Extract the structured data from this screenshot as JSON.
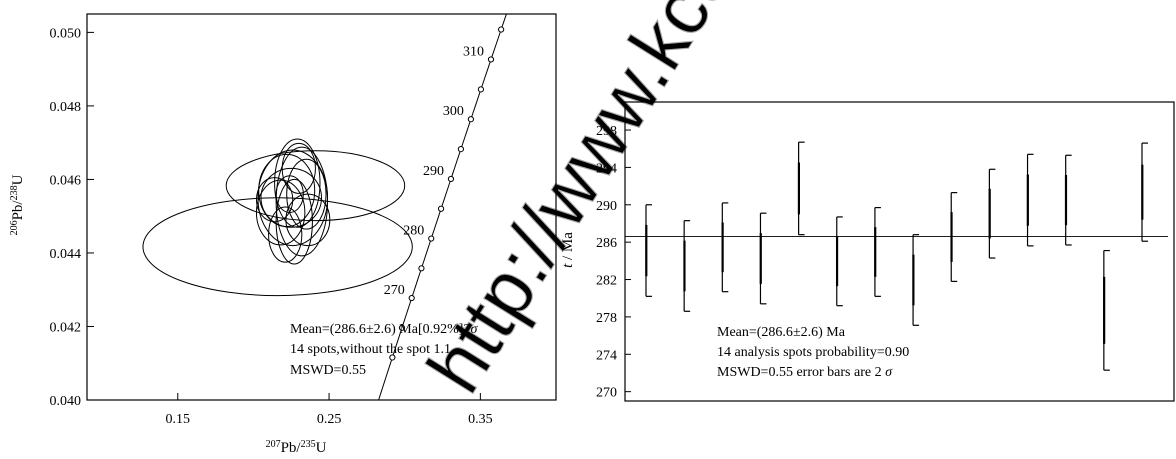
{
  "watermark": "http://www.kcdz.ac.cn",
  "chart_data": [
    {
      "type": "scatter",
      "subtype": "concordia-diagram",
      "title": "",
      "xlabel": {
        "sup1": "207",
        "base1": "Pb/",
        "sup2": "235",
        "base2": "U"
      },
      "ylabel": {
        "sup1": "206",
        "base1": "Pb/",
        "sup2": "238",
        "base2": "U"
      },
      "xlim": [
        0.09,
        0.4
      ],
      "ylim": [
        0.04,
        0.0505
      ],
      "xticks": [
        {
          "value": 0.15,
          "label": "0.15"
        },
        {
          "value": 0.25,
          "label": "0.25"
        },
        {
          "value": 0.35,
          "label": "0.35"
        }
      ],
      "yticks": [
        {
          "value": 0.04,
          "label": "0.040"
        },
        {
          "value": 0.042,
          "label": "0.042"
        },
        {
          "value": 0.044,
          "label": "0.044"
        },
        {
          "value": 0.046,
          "label": "0.046"
        },
        {
          "value": 0.048,
          "label": "0.048"
        },
        {
          "value": 0.05,
          "label": "0.050"
        }
      ],
      "concordia_ages_ma": [
        260,
        265,
        270,
        275,
        280,
        285,
        290,
        295,
        300,
        305,
        310,
        315
      ],
      "age_labels": [
        {
          "age": 270,
          "label": "270"
        },
        {
          "age": 280,
          "label": "280"
        },
        {
          "age": 290,
          "label": "290"
        },
        {
          "age": 300,
          "label": "300"
        },
        {
          "age": 310,
          "label": "310"
        }
      ],
      "error_ellipses": [
        {
          "cx": 0.216,
          "cy": 0.04417,
          "rx": 0.089,
          "ry": 0.00133,
          "angle": 0
        },
        {
          "cx": 0.241,
          "cy": 0.04583,
          "rx": 0.059,
          "ry": 0.00095,
          "angle": 0
        },
        {
          "cx": 0.226,
          "cy": 0.0455,
          "rx": 0.023,
          "ry": 0.0013,
          "angle": 0
        },
        {
          "cx": 0.232,
          "cy": 0.0454,
          "rx": 0.017,
          "ry": 0.00148,
          "angle": 0
        },
        {
          "cx": 0.222,
          "cy": 0.0457,
          "rx": 0.0185,
          "ry": 0.00098,
          "angle": 0
        },
        {
          "cx": 0.235,
          "cy": 0.0456,
          "rx": 0.013,
          "ry": 0.00095,
          "angle": 0
        },
        {
          "cx": 0.23,
          "cy": 0.0463,
          "rx": 0.011,
          "ry": 0.00068,
          "angle": 0
        },
        {
          "cx": 0.218,
          "cy": 0.0451,
          "rx": 0.016,
          "ry": 0.00088,
          "angle": 0
        },
        {
          "cx": 0.227,
          "cy": 0.04485,
          "rx": 0.012,
          "ry": 0.00115,
          "angle": 0
        },
        {
          "cx": 0.225,
          "cy": 0.0455,
          "rx": 0.02,
          "ry": 0.0008,
          "angle": 0
        },
        {
          "cx": 0.214,
          "cy": 0.04545,
          "rx": 0.012,
          "ry": 0.0006,
          "angle": 0
        },
        {
          "cx": 0.221,
          "cy": 0.0445,
          "rx": 0.011,
          "ry": 0.00075,
          "angle": 0
        },
        {
          "cx": 0.236,
          "cy": 0.0449,
          "rx": 0.0145,
          "ry": 0.0007,
          "angle": 0
        },
        {
          "cx": 0.224,
          "cy": 0.0456,
          "rx": 0.009,
          "ry": 0.0005,
          "angle": 0
        },
        {
          "cx": 0.229,
          "cy": 0.0459,
          "rx": 0.015,
          "ry": 0.0012,
          "angle": 0
        }
      ],
      "annotation_lines": [
        {
          "pre": "Mean=(286.6",
          "pm": "±",
          "post": "2.6) Ma[0.92%]2",
          "sigma": "σ"
        },
        {
          "pre": "14 spots,without the spot 1.1"
        },
        {
          "pre": "MSWD=0.55"
        }
      ]
    },
    {
      "type": "bar",
      "subtype": "weighted-mean-error-bars",
      "title": "",
      "xlabel": "",
      "ylabel": {
        "italic": "t",
        "rest": " / Ma"
      },
      "ylim": [
        269,
        301
      ],
      "yticks": [
        270,
        274,
        278,
        282,
        286,
        290,
        294,
        298
      ],
      "mean": 286.6,
      "bars": [
        {
          "low": 280.2,
          "high": 290.0
        },
        {
          "low": 278.6,
          "high": 288.3
        },
        {
          "low": 280.7,
          "high": 290.2
        },
        {
          "low": 279.4,
          "high": 289.1
        },
        {
          "low": 286.8,
          "high": 296.7
        },
        {
          "low": 279.2,
          "high": 288.7
        },
        {
          "low": 280.2,
          "high": 289.7
        },
        {
          "low": 277.1,
          "high": 286.8
        },
        {
          "low": 281.8,
          "high": 291.3
        },
        {
          "low": 284.3,
          "high": 293.8
        },
        {
          "low": 285.6,
          "high": 295.4
        },
        {
          "low": 285.7,
          "high": 295.3
        },
        {
          "low": 272.3,
          "high": 285.1
        },
        {
          "low": 286.1,
          "high": 296.6
        }
      ],
      "annotation_lines": [
        {
          "pre": "Mean=(286.6",
          "pm": "±",
          "post": "2.6) Ma"
        },
        {
          "pre": "14 analysis spots probability=0.90"
        },
        {
          "pre": "MSWD=0.55 error bars are 2 ",
          "sigma": "σ"
        }
      ]
    }
  ]
}
